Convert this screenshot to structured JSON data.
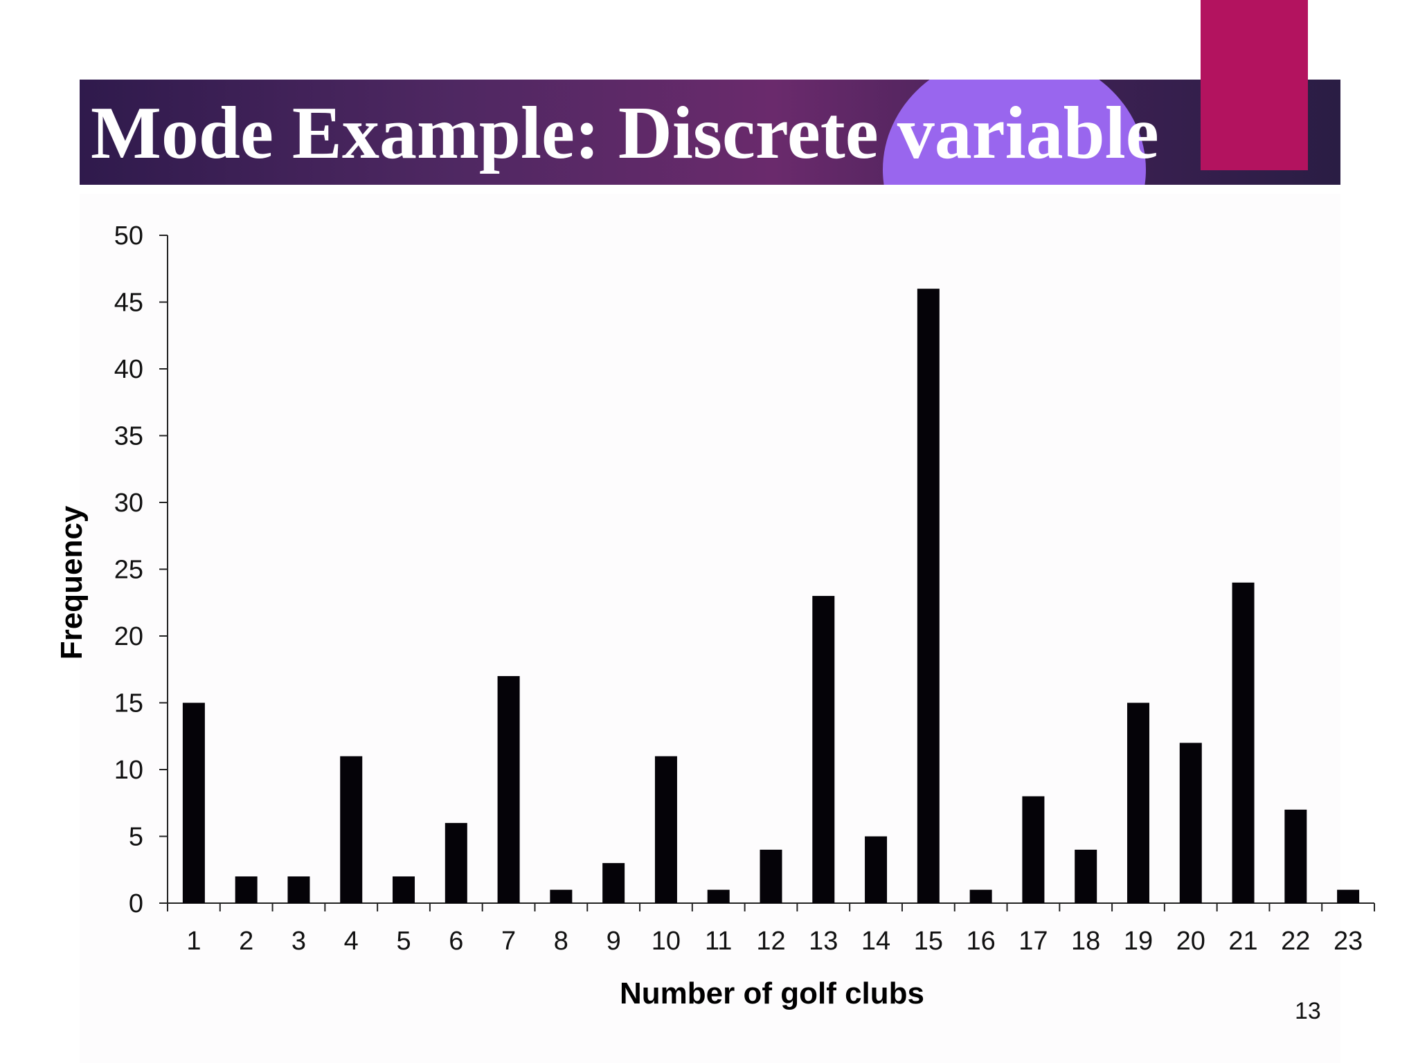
{
  "slide": {
    "title": "Mode Example: Discrete variable",
    "page_number": "13",
    "colors": {
      "title_band": "#4f2862",
      "title_circle": "#9966ee",
      "accent": "#b3135f",
      "bars": "#050308"
    }
  },
  "chart_data": {
    "type": "bar",
    "title": "",
    "xlabel": "Number of golf clubs",
    "ylabel": "Frequency",
    "ylim": [
      0,
      50
    ],
    "yticks": [
      0,
      5,
      10,
      15,
      20,
      25,
      30,
      35,
      40,
      45,
      50
    ],
    "categories": [
      "1",
      "2",
      "3",
      "4",
      "5",
      "6",
      "7",
      "8",
      "9",
      "10",
      "11",
      "12",
      "13",
      "14",
      "15",
      "16",
      "17",
      "18",
      "19",
      "20",
      "21",
      "22",
      "23"
    ],
    "values": [
      15,
      2,
      2,
      11,
      2,
      6,
      17,
      1,
      3,
      11,
      1,
      4,
      23,
      5,
      46,
      1,
      8,
      4,
      15,
      12,
      24,
      7,
      1
    ],
    "grid": false,
    "legend": "none"
  }
}
